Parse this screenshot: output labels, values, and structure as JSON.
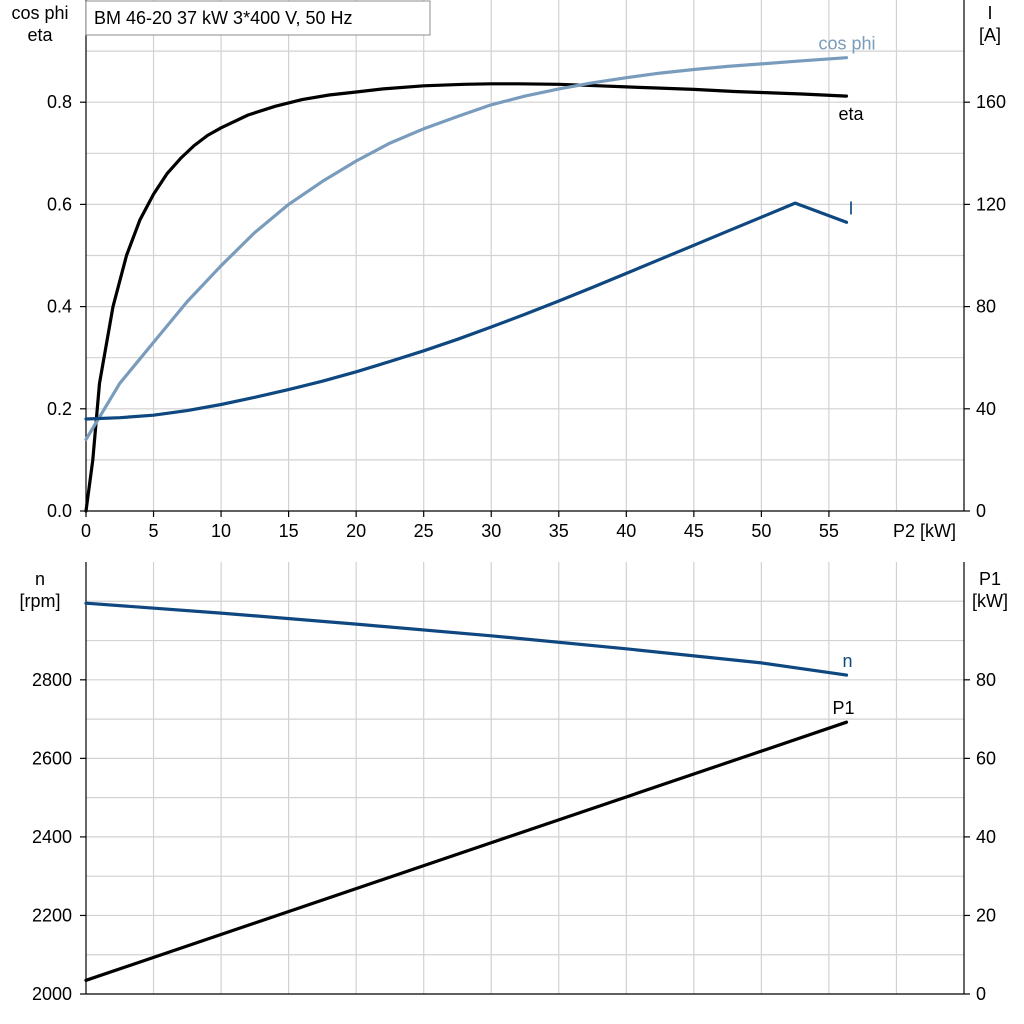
{
  "title": "BM 46-20   37 kW   3*400 V, 50 Hz",
  "chart_data": [
    {
      "type": "line",
      "panel": "top",
      "x_label": "P2 [kW]",
      "xlim": [
        0,
        65
      ],
      "x_ticks": [
        0,
        5,
        10,
        15,
        20,
        25,
        30,
        35,
        40,
        45,
        50,
        55
      ],
      "y_left_label": [
        "cos phi",
        "eta"
      ],
      "y_left_lim": [
        0,
        1.0
      ],
      "y_left_ticks": [
        0.0,
        0.2,
        0.4,
        0.6,
        0.8
      ],
      "y_left_tick_labels": [
        "0.0",
        "0.2",
        "0.4",
        "0.6",
        "0.8"
      ],
      "y_right_label": [
        "I",
        "[A]"
      ],
      "y_right_lim": [
        0,
        200
      ],
      "y_right_ticks": [
        0,
        40,
        80,
        120,
        160
      ],
      "y_right_tick_labels": [
        "0",
        "40",
        "80",
        "120",
        "160"
      ],
      "grid": true,
      "series": [
        {
          "name": "eta",
          "axis": "left",
          "color": "#000000",
          "x": [
            0,
            0.5,
            1,
            2,
            3,
            4,
            5,
            6,
            7,
            8,
            9,
            10,
            12,
            14,
            16,
            18,
            20,
            22,
            25,
            28,
            30,
            32,
            35,
            38,
            40,
            42,
            45,
            48,
            50,
            53,
            56.3
          ],
          "y": [
            0,
            0.1,
            0.25,
            0.4,
            0.5,
            0.57,
            0.62,
            0.66,
            0.69,
            0.715,
            0.735,
            0.75,
            0.775,
            0.792,
            0.805,
            0.814,
            0.82,
            0.826,
            0.832,
            0.835,
            0.836,
            0.836,
            0.835,
            0.832,
            0.83,
            0.828,
            0.825,
            0.821,
            0.819,
            0.816,
            0.812
          ]
        },
        {
          "name": "cos phi",
          "axis": "left",
          "color": "#7a9cbc",
          "x": [
            0,
            2.5,
            5,
            7.5,
            10,
            12.5,
            15,
            17.5,
            20,
            22.5,
            25,
            27.5,
            30,
            32.5,
            35,
            37.5,
            40,
            42.5,
            45,
            47.5,
            50,
            52.5,
            56.3
          ],
          "y": [
            0.14,
            0.25,
            0.33,
            0.41,
            0.48,
            0.545,
            0.6,
            0.645,
            0.685,
            0.72,
            0.748,
            0.772,
            0.795,
            0.812,
            0.826,
            0.838,
            0.848,
            0.857,
            0.864,
            0.87,
            0.875,
            0.88,
            0.887
          ]
        },
        {
          "name": "I",
          "axis": "right",
          "color": "#0f4880",
          "x": [
            0,
            2.5,
            5,
            7.5,
            10,
            12.5,
            15,
            17.5,
            20,
            22.5,
            25,
            27.5,
            30,
            32.5,
            35,
            37.5,
            40,
            42.5,
            45,
            47.5,
            50,
            52.5,
            56.3
          ],
          "y": [
            36,
            36.5,
            37.5,
            39.3,
            41.7,
            44.5,
            47.5,
            50.8,
            54.5,
            58.5,
            62.7,
            67.2,
            72,
            77,
            82.2,
            87.5,
            93,
            98.5,
            104,
            109.5,
            115,
            120.5,
            113
          ]
        }
      ]
    },
    {
      "type": "line",
      "panel": "bottom",
      "xlim": [
        0,
        65
      ],
      "y_left_label": [
        "n",
        "[rpm]"
      ],
      "y_left_lim": [
        2000,
        3100
      ],
      "y_left_ticks": [
        2000,
        2200,
        2400,
        2600,
        2800
      ],
      "y_left_tick_labels": [
        "2000",
        "2200",
        "2400",
        "2600",
        "2800"
      ],
      "y_right_label": [
        "P1",
        "[kW]"
      ],
      "y_right_lim": [
        0,
        110
      ],
      "y_right_ticks": [
        0,
        20,
        40,
        60,
        80
      ],
      "y_right_tick_labels": [
        "0",
        "20",
        "40",
        "60",
        "80"
      ],
      "grid": true,
      "series": [
        {
          "name": "n",
          "axis": "left",
          "color": "#0f4880",
          "x": [
            0,
            10,
            20,
            30,
            40,
            50,
            56.3
          ],
          "y": [
            2995,
            2970,
            2942,
            2912,
            2879,
            2843,
            2812
          ]
        },
        {
          "name": "P1",
          "axis": "right",
          "color": "#000000",
          "x": [
            0,
            56.3
          ],
          "y": [
            3.5,
            69.2
          ]
        }
      ]
    }
  ]
}
